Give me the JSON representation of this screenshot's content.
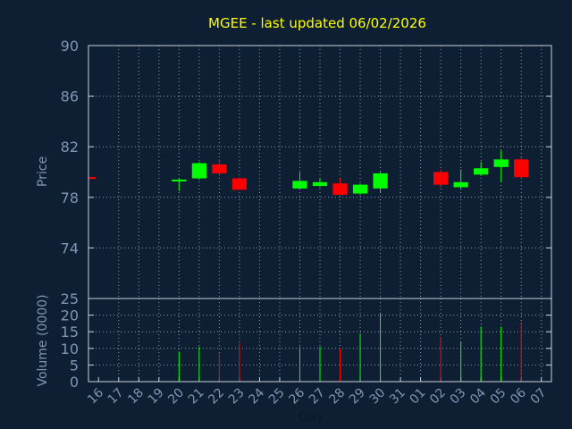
{
  "chart_data": [
    {
      "type": "candlestick",
      "title": "MGEE - last updated 06/02/2026",
      "ylabel": "Price",
      "ylim": [
        70,
        90
      ],
      "yticks": [
        90,
        86,
        82,
        78,
        74
      ],
      "grid": true,
      "x": [
        "16",
        "17",
        "18",
        "19",
        "20",
        "21",
        "22",
        "23",
        "24",
        "25",
        "26",
        "27",
        "28",
        "29",
        "30",
        "31",
        "01",
        "02",
        "03",
        "04",
        "05",
        "06",
        "07"
      ],
      "candles": [
        {
          "x": "16",
          "open": 79.6,
          "high": 79.6,
          "low": 79.5,
          "close": 79.5
        },
        {
          "x": "20",
          "open": 79.3,
          "high": 79.5,
          "low": 78.5,
          "close": 79.4
        },
        {
          "x": "21",
          "open": 79.5,
          "high": 80.8,
          "low": 79.4,
          "close": 80.7
        },
        {
          "x": "22",
          "open": 80.6,
          "high": 81.0,
          "low": 79.8,
          "close": 79.9
        },
        {
          "x": "23",
          "open": 79.5,
          "high": 79.6,
          "low": 78.6,
          "close": 78.6
        },
        {
          "x": "26",
          "open": 78.7,
          "high": 80.0,
          "low": 78.6,
          "close": 79.3
        },
        {
          "x": "27",
          "open": 78.9,
          "high": 79.5,
          "low": 78.8,
          "close": 79.2
        },
        {
          "x": "28",
          "open": 79.1,
          "high": 79.5,
          "low": 78.2,
          "close": 78.2
        },
        {
          "x": "29",
          "open": 78.3,
          "high": 79.1,
          "low": 78.2,
          "close": 79.0
        },
        {
          "x": "30",
          "open": 78.7,
          "high": 80.0,
          "low": 78.4,
          "close": 79.9
        },
        {
          "x": "02",
          "open": 80.0,
          "high": 80.2,
          "low": 78.8,
          "close": 79.0
        },
        {
          "x": "03",
          "open": 78.8,
          "high": 80.2,
          "low": 78.7,
          "close": 79.2
        },
        {
          "x": "04",
          "open": 79.8,
          "high": 80.8,
          "low": 79.7,
          "close": 80.3
        },
        {
          "x": "05",
          "open": 80.4,
          "high": 81.7,
          "low": 79.2,
          "close": 81.0
        },
        {
          "x": "06",
          "open": 81.0,
          "high": 81.2,
          "low": 79.5,
          "close": 79.6
        }
      ],
      "colors": {
        "up": "#00ff00",
        "down": "#ff0000"
      }
    },
    {
      "type": "bar",
      "ylabel": "Volume (0000)",
      "xlabel": "Day",
      "ylim": [
        0,
        25
      ],
      "yticks": [
        25,
        20,
        15,
        10,
        5,
        0
      ],
      "grid": true,
      "x": [
        "16",
        "17",
        "18",
        "19",
        "20",
        "21",
        "22",
        "23",
        "24",
        "25",
        "26",
        "27",
        "28",
        "29",
        "30",
        "31",
        "01",
        "02",
        "03",
        "04",
        "05",
        "06",
        "07"
      ],
      "bars": [
        {
          "x": "20",
          "value": 9,
          "color": "up"
        },
        {
          "x": "21",
          "value": 10.5,
          "color": "up"
        },
        {
          "x": "22",
          "value": 8.5,
          "color": "down"
        },
        {
          "x": "23",
          "value": 11.5,
          "color": "down"
        },
        {
          "x": "26",
          "value": 10.5,
          "color": "up"
        },
        {
          "x": "27",
          "value": 10.5,
          "color": "up"
        },
        {
          "x": "28",
          "value": 10,
          "color": "down"
        },
        {
          "x": "29",
          "value": 14.5,
          "color": "up"
        },
        {
          "x": "30",
          "value": 20.5,
          "color": "up"
        },
        {
          "x": "02",
          "value": 13.5,
          "color": "down"
        },
        {
          "x": "03",
          "value": 12,
          "color": "up"
        },
        {
          "x": "04",
          "value": 16.5,
          "color": "up"
        },
        {
          "x": "05",
          "value": 16.5,
          "color": "up"
        },
        {
          "x": "06",
          "value": 18,
          "color": "down"
        }
      ]
    }
  ]
}
